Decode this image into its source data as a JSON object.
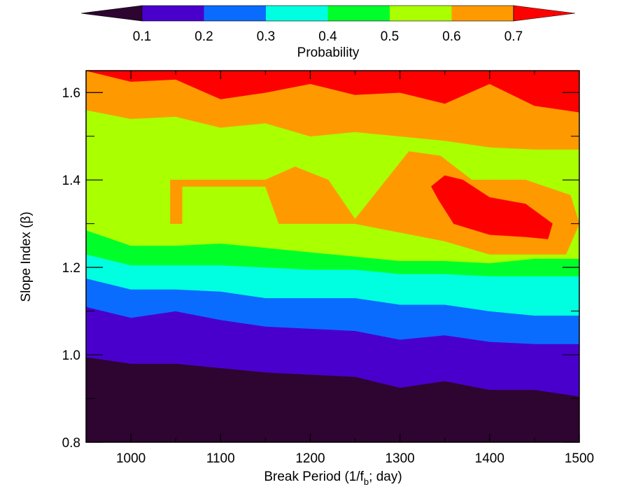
{
  "chart_data": {
    "type": "contour",
    "xlabel": "Break Period (1/f",
    "xlabel_sub": "b",
    "xlabel_tail": "; day)",
    "ylabel": "Slope Index (β)",
    "xlim": [
      950,
      1500
    ],
    "ylim": [
      0.8,
      1.65
    ],
    "x_ticks": [
      1000,
      1100,
      1200,
      1300,
      1400,
      1500
    ],
    "x_tick_labels": [
      "1000",
      "1100",
      "1200",
      "1300",
      "1400",
      "1500"
    ],
    "y_ticks": [
      0.8,
      1.0,
      1.2,
      1.4,
      1.6
    ],
    "y_tick_labels": [
      "0.8",
      "1.0",
      "1.2",
      "1.4",
      "1.6"
    ],
    "colorbar": {
      "label": "Probability",
      "levels": [
        0.1,
        0.2,
        0.3,
        0.4,
        0.5,
        0.6,
        0.7
      ],
      "level_labels": [
        "0.1",
        "0.2",
        "0.3",
        "0.4",
        "0.5",
        "0.6",
        "0.7"
      ],
      "colors": [
        "#2e0430",
        "#4a00cc",
        "#0a6cff",
        "#00ffe0",
        "#00ff2a",
        "#aaff00",
        "#ff9900",
        "#ff0000"
      ],
      "extend": "both"
    },
    "contour_x": [
      950,
      1000,
      1050,
      1100,
      1150,
      1200,
      1250,
      1300,
      1350,
      1400,
      1450,
      1500
    ],
    "boundaries": [
      {
        "level": 0.1,
        "y": [
          0.995,
          0.98,
          0.98,
          0.97,
          0.96,
          0.955,
          0.95,
          0.925,
          0.94,
          0.92,
          0.92,
          0.905
        ]
      },
      {
        "level": 0.2,
        "y": [
          1.11,
          1.085,
          1.1,
          1.08,
          1.065,
          1.06,
          1.055,
          1.035,
          1.045,
          1.03,
          1.025,
          1.025
        ]
      },
      {
        "level": 0.3,
        "y": [
          1.175,
          1.15,
          1.15,
          1.145,
          1.13,
          1.13,
          1.13,
          1.115,
          1.115,
          1.1,
          1.09,
          1.09
        ]
      },
      {
        "level": 0.4,
        "y": [
          1.23,
          1.205,
          1.205,
          1.205,
          1.2,
          1.195,
          1.195,
          1.185,
          1.185,
          1.18,
          1.18,
          1.18
        ]
      },
      {
        "level": 0.5,
        "y": [
          1.285,
          1.25,
          1.25,
          1.255,
          1.245,
          1.235,
          1.225,
          1.215,
          1.215,
          1.21,
          1.22,
          1.22
        ]
      },
      {
        "level": 0.6,
        "y": [
          1.56,
          1.54,
          1.545,
          1.52,
          1.53,
          1.5,
          1.51,
          1.5,
          1.49,
          1.475,
          1.47,
          1.47
        ]
      },
      {
        "level": 0.7,
        "y": [
          1.65,
          1.625,
          1.63,
          1.585,
          1.6,
          1.62,
          1.595,
          1.6,
          1.575,
          1.62,
          1.57,
          1.555
        ]
      }
    ],
    "high_regions": [
      {
        "level": 0.6,
        "points": [
          [
            1044,
            1.4
          ],
          [
            1150,
            1.4
          ],
          [
            1183,
            1.43
          ],
          [
            1220,
            1.4
          ],
          [
            1250,
            1.31
          ],
          [
            1310,
            1.465
          ],
          [
            1345,
            1.455
          ],
          [
            1380,
            1.4
          ],
          [
            1440,
            1.4
          ],
          [
            1490,
            1.365
          ],
          [
            1500,
            1.3
          ],
          [
            1485,
            1.23
          ],
          [
            1400,
            1.23
          ],
          [
            1350,
            1.26
          ],
          [
            1300,
            1.28
          ],
          [
            1250,
            1.3
          ],
          [
            1200,
            1.3
          ],
          [
            1165,
            1.3
          ],
          [
            1150,
            1.385
          ],
          [
            1057,
            1.385
          ],
          [
            1057,
            1.3
          ],
          [
            1044,
            1.3
          ]
        ]
      },
      {
        "level": 0.7,
        "points": [
          [
            1335,
            1.385
          ],
          [
            1350,
            1.41
          ],
          [
            1370,
            1.4
          ],
          [
            1400,
            1.36
          ],
          [
            1440,
            1.345
          ],
          [
            1470,
            1.3
          ],
          [
            1465,
            1.265
          ],
          [
            1440,
            1.27
          ],
          [
            1400,
            1.275
          ],
          [
            1360,
            1.3
          ],
          [
            1343,
            1.355
          ]
        ]
      }
    ]
  }
}
